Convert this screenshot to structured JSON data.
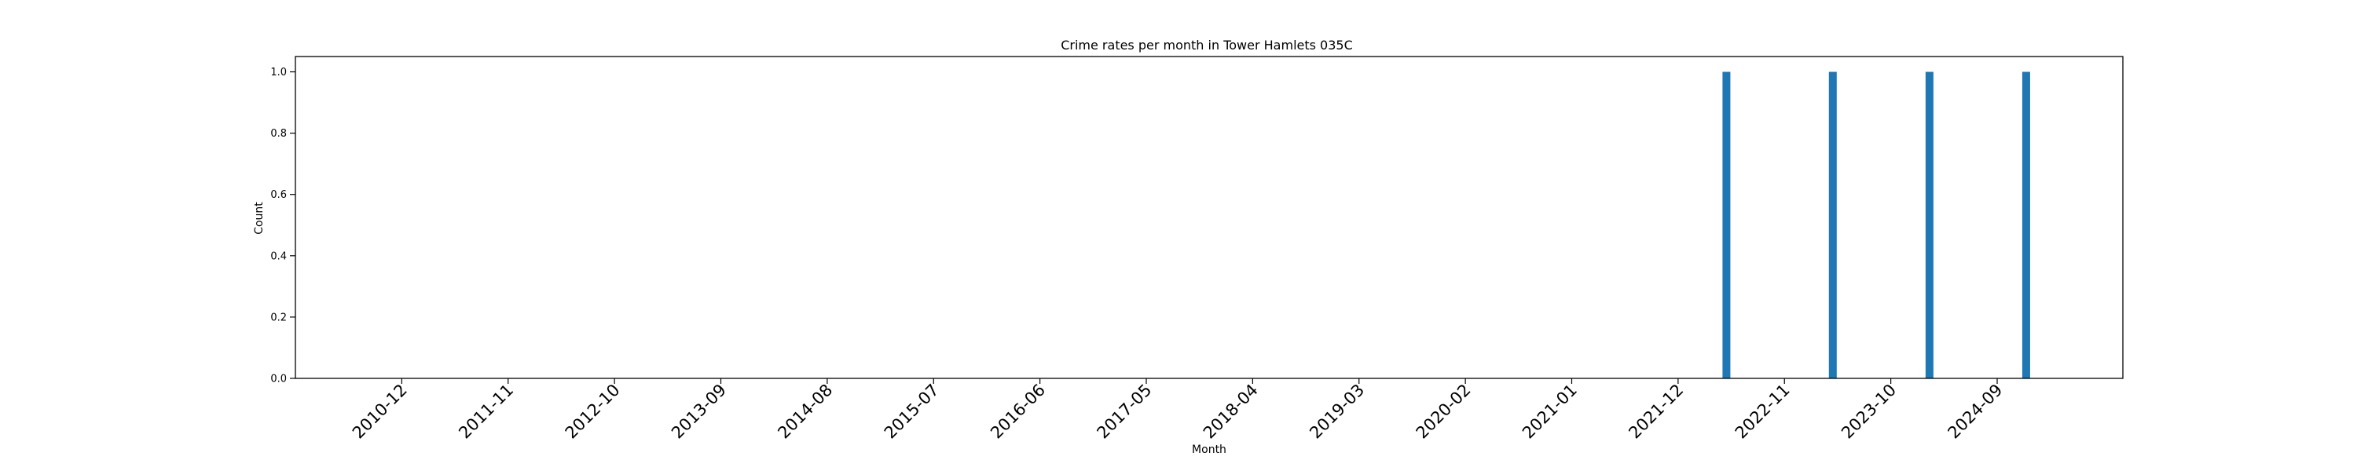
{
  "chart_data": {
    "type": "bar",
    "title": "Crime rates per month in Tower Hamlets 035C",
    "xlabel": "Month",
    "ylabel": "Count",
    "ylim": [
      0,
      1.05
    ],
    "yticks": [
      "0.0",
      "0.2",
      "0.4",
      "0.6",
      "0.8",
      "1.0"
    ],
    "ytick_values": [
      0,
      0.2,
      0.4,
      0.6,
      0.8,
      1.0
    ],
    "x_axis_start": "2010-01",
    "x_axis_end": "2025-10",
    "xticks": [
      "2010-12",
      "2011-11",
      "2012-10",
      "2013-09",
      "2014-08",
      "2015-07",
      "2016-06",
      "2017-05",
      "2018-04",
      "2019-03",
      "2020-02",
      "2021-01",
      "2021-12",
      "2022-11",
      "2023-10",
      "2024-09"
    ],
    "bars": [
      {
        "month": "2022-05",
        "value": 1
      },
      {
        "month": "2023-04",
        "value": 1
      },
      {
        "month": "2024-02",
        "value": 1
      },
      {
        "month": "2024-12",
        "value": 1
      }
    ],
    "bar_color": "#1f77b4",
    "grid": false,
    "legend": "none"
  }
}
